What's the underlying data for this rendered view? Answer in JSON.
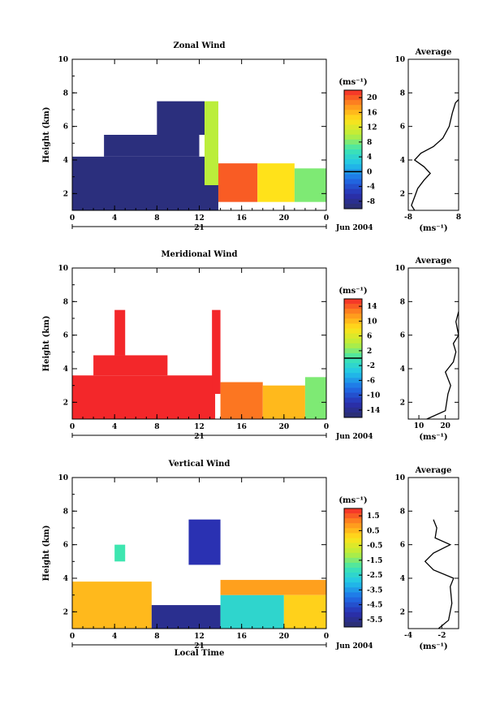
{
  "chart_data": [
    {
      "type": "heatmap",
      "title": "Zonal Wind",
      "ylabel": "Height (km)",
      "xlim": [
        0,
        24
      ],
      "ylim": [
        1,
        10
      ],
      "xticks": [
        "0",
        "4",
        "8",
        "12",
        "16",
        "20",
        "0"
      ],
      "yticks": [
        "2",
        "4",
        "6",
        "8",
        "10"
      ],
      "date_day": "21",
      "date_label": "Jun 2004",
      "colorbar_unit": "(ms⁻¹)",
      "colorbar_ticks": [
        "20",
        "16",
        "12",
        "8",
        "4",
        "0",
        "-4",
        "-8"
      ],
      "colorbar_range": [
        -10,
        22
      ],
      "colorbar_marker": 0,
      "regions": [
        {
          "x0": 0,
          "x1": 13.8,
          "y0": 1,
          "y1": 4.2,
          "value": -9
        },
        {
          "x0": 3,
          "x1": 12,
          "y0": 4.2,
          "y1": 5.5,
          "value": -9
        },
        {
          "x0": 8,
          "x1": 12.5,
          "y0": 5.5,
          "y1": 7.5,
          "value": -9
        },
        {
          "x0": 13.8,
          "x1": 17.5,
          "y0": 1.5,
          "y1": 3.8,
          "value": 20
        },
        {
          "x0": 17.5,
          "x1": 21,
          "y0": 1.5,
          "y1": 3.8,
          "value": 14
        },
        {
          "x0": 21,
          "x1": 24,
          "y0": 1.5,
          "y1": 3.5,
          "value": 8
        },
        {
          "x0": 12.5,
          "x1": 13.8,
          "y0": 2.5,
          "y1": 7.5,
          "value": 10
        }
      ],
      "avg_title": "Average",
      "avg_xticks": [
        "-8",
        "8"
      ],
      "avg_xlim": [
        -8,
        8
      ],
      "avg_yticks": [
        "2",
        "4",
        "6",
        "8",
        "10"
      ],
      "avg_xlabel": "(ms⁻¹)",
      "avg_profile": [
        [
          -6,
          1.0
        ],
        [
          -7,
          1.3
        ],
        [
          -6,
          1.8
        ],
        [
          -5,
          2.3
        ],
        [
          -3,
          2.8
        ],
        [
          -1,
          3.2
        ],
        [
          -3,
          3.6
        ],
        [
          -6,
          4.0
        ],
        [
          -4,
          4.4
        ],
        [
          0,
          4.8
        ],
        [
          3,
          5.3
        ],
        [
          5,
          6.0
        ],
        [
          6,
          6.8
        ],
        [
          7,
          7.4
        ],
        [
          8,
          7.6
        ]
      ]
    },
    {
      "type": "heatmap",
      "title": "Meridional Wind",
      "ylabel": "Height (km)",
      "xlim": [
        0,
        24
      ],
      "ylim": [
        1,
        10
      ],
      "xticks": [
        "0",
        "4",
        "8",
        "12",
        "16",
        "20",
        "0"
      ],
      "yticks": [
        "2",
        "4",
        "6",
        "8",
        "10"
      ],
      "date_day": "21",
      "date_label": "Jun 2004",
      "colorbar_unit": "(ms⁻¹)",
      "colorbar_ticks": [
        "14",
        "10",
        "6",
        "2",
        "-2",
        "-6",
        "-10",
        "-14"
      ],
      "colorbar_range": [
        -16,
        16
      ],
      "colorbar_marker": 0,
      "regions": [
        {
          "x0": 0,
          "x1": 13.5,
          "y0": 1,
          "y1": 3.6,
          "value": 16
        },
        {
          "x0": 2,
          "x1": 9,
          "y0": 3.6,
          "y1": 4.8,
          "value": 16
        },
        {
          "x0": 4,
          "x1": 5,
          "y0": 4.8,
          "y1": 7.5,
          "value": 16
        },
        {
          "x0": 13.2,
          "x1": 14,
          "y0": 2.5,
          "y1": 7.5,
          "value": 16
        },
        {
          "x0": 14,
          "x1": 18,
          "y0": 1,
          "y1": 3.2,
          "value": 13
        },
        {
          "x0": 18,
          "x1": 22,
          "y0": 1,
          "y1": 3.0,
          "value": 10
        },
        {
          "x0": 22,
          "x1": 24,
          "y0": 1,
          "y1": 3.5,
          "value": 2
        }
      ],
      "avg_title": "Average",
      "avg_xticks": [
        "10",
        "20"
      ],
      "avg_xlim": [
        6,
        25
      ],
      "avg_yticks": [
        "2",
        "4",
        "6",
        "8",
        "10"
      ],
      "avg_xlabel": "(ms⁻¹)",
      "avg_profile": [
        [
          13,
          1.0
        ],
        [
          20,
          1.5
        ],
        [
          21,
          2.5
        ],
        [
          22,
          3.0
        ],
        [
          20,
          3.8
        ],
        [
          21,
          4.0
        ],
        [
          23,
          4.4
        ],
        [
          24,
          5.0
        ],
        [
          23,
          5.5
        ],
        [
          25,
          6.0
        ],
        [
          24,
          6.8
        ],
        [
          25,
          7.4
        ]
      ]
    },
    {
      "type": "heatmap",
      "title": "Vertical Wind",
      "ylabel": "Height (km)",
      "xlabel": "Local Time",
      "xlim": [
        0,
        24
      ],
      "ylim": [
        1,
        10
      ],
      "xticks": [
        "0",
        "4",
        "8",
        "12",
        "16",
        "20",
        "0"
      ],
      "yticks": [
        "2",
        "4",
        "6",
        "8",
        "10"
      ],
      "date_day": "21",
      "date_label": "Jun 2004",
      "colorbar_unit": "(ms⁻¹)",
      "colorbar_ticks": [
        "1.5",
        "0.5",
        "-0.5",
        "-1.5",
        "-2.5",
        "-3.5",
        "-4.5",
        "-5.5"
      ],
      "colorbar_range": [
        -6,
        2
      ],
      "regions": [
        {
          "x0": 0,
          "x1": 7.5,
          "y0": 1,
          "y1": 3.8,
          "value": 0.5
        },
        {
          "x0": 7.5,
          "x1": 14,
          "y0": 1,
          "y1": 2.4,
          "value": -5.5
        },
        {
          "x0": 11,
          "x1": 14,
          "y0": 4.8,
          "y1": 7.5,
          "value": -5
        },
        {
          "x0": 14,
          "x1": 20,
          "y0": 1,
          "y1": 3.0,
          "value": -2.5
        },
        {
          "x0": 14,
          "x1": 24,
          "y0": 3.0,
          "y1": 3.9,
          "value": 0.8
        },
        {
          "x0": 20,
          "x1": 24,
          "y0": 1,
          "y1": 3.0,
          "value": 0.2
        },
        {
          "x0": 4,
          "x1": 5,
          "y0": 5.0,
          "y1": 6.0,
          "value": -2
        }
      ],
      "avg_title": "Average",
      "avg_xticks": [
        "-4",
        "-2"
      ],
      "avg_xlim": [
        -4,
        -1
      ],
      "avg_yticks": [
        "2",
        "4",
        "6",
        "8",
        "10"
      ],
      "avg_xlabel": "(ms⁻¹)",
      "avg_profile": [
        [
          -2.2,
          1.0
        ],
        [
          -1.6,
          1.5
        ],
        [
          -1.4,
          2.5
        ],
        [
          -1.5,
          3.5
        ],
        [
          -1.3,
          4.0
        ],
        [
          -2.5,
          4.5
        ],
        [
          -3.0,
          5.0
        ],
        [
          -2.5,
          5.5
        ],
        [
          -1.5,
          6.0
        ],
        [
          -2.4,
          6.4
        ],
        [
          -2.3,
          7.0
        ],
        [
          -2.5,
          7.5
        ]
      ]
    }
  ]
}
